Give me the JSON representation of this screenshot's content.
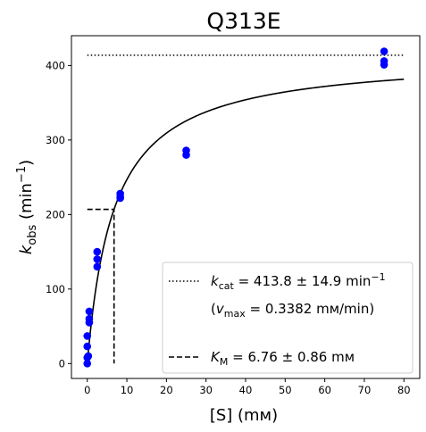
{
  "chart_data": {
    "type": "scatter",
    "title": "Q313E",
    "xlabel": "[S] (mм)",
    "ylabel_main": "k",
    "ylabel_sub": "obs",
    "ylabel_unit": "(min",
    "ylabel_exp": "−1",
    "ylabel_close": ")",
    "xlim": [
      -4,
      84
    ],
    "ylim": [
      -20,
      440
    ],
    "xticks": [
      0,
      10,
      20,
      30,
      40,
      50,
      60,
      70,
      80
    ],
    "yticks": [
      0,
      100,
      200,
      300,
      400
    ],
    "grid": false,
    "legend_position": "lower-right",
    "point_color": "#0000ff",
    "points": {
      "x": [
        0,
        0,
        0,
        0,
        0.25,
        0.5,
        0.5,
        0.5,
        2.5,
        2.5,
        2.5,
        8.33,
        8.33,
        8.33,
        25,
        25,
        75,
        75,
        75
      ],
      "y": [
        0,
        8,
        23,
        37,
        10,
        55,
        60,
        70,
        130,
        140,
        150,
        222,
        228,
        224,
        280,
        286,
        401,
        406,
        419
      ]
    },
    "fit": {
      "model": "michaelis-menten",
      "kcat": 413.8,
      "km": 6.76,
      "x_range": [
        0,
        80
      ],
      "color": "#000000"
    },
    "kcat_line": {
      "y": 413.8,
      "x_range": [
        0,
        80
      ],
      "style": "dotted"
    },
    "km_marker": {
      "x": 6.76,
      "y": 206.9,
      "style": "dashed"
    },
    "legend": {
      "kcat_k": "k",
      "kcat_sub": "cat",
      "kcat_value": " = 413.8 ± 14.9 min",
      "kcat_exp": "−1",
      "vmax_open": "(",
      "vmax_v": "v",
      "vmax_sub": "max",
      "vmax_value": " = 0.3382 mм/min)",
      "km_k": "K",
      "km_sub": "M",
      "km_value": " = 6.76 ± 0.86 mм"
    }
  }
}
